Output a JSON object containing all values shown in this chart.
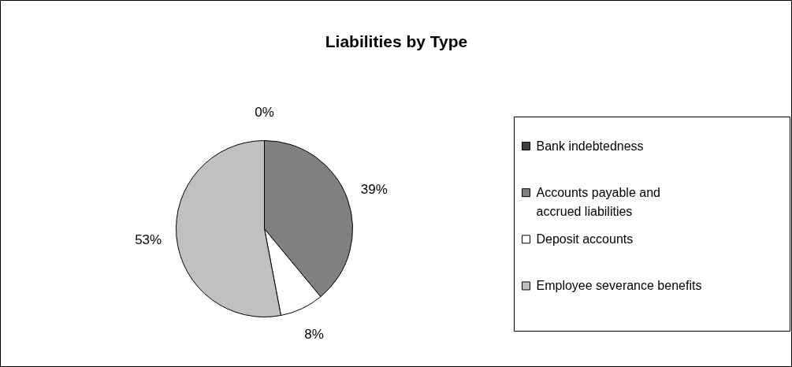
{
  "chart_data": {
    "type": "pie",
    "title": "Liabilities by Type",
    "categories": [
      "Bank indebtedness",
      "Accounts payable and accrued liabilities",
      "Deposit accounts",
      "Employee severance benefits"
    ],
    "values": [
      0,
      39,
      8,
      53
    ],
    "colors": [
      "#404040",
      "#808080",
      "#ffffff",
      "#c0c0c0"
    ],
    "value_labels": [
      "0%",
      "39%",
      "8%",
      "53%"
    ],
    "legend": "right"
  }
}
